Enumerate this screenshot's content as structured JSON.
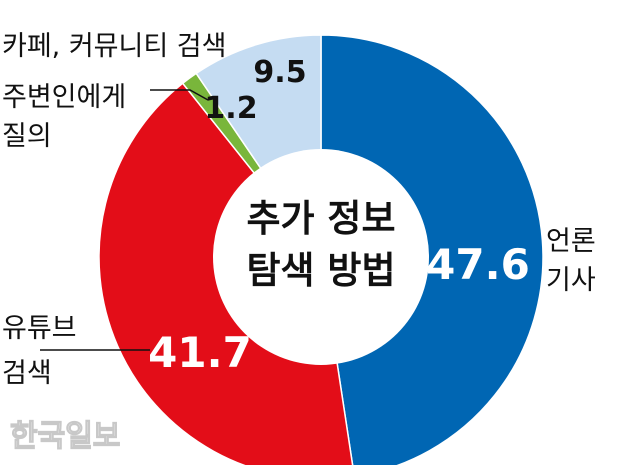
{
  "chart_data": {
    "type": "pie",
    "style": "donut",
    "title_lines": [
      "추가 정보",
      "탐색 방법"
    ],
    "slices": [
      {
        "label_lines": [
          "언론",
          "기사"
        ],
        "value": 47.6,
        "value_label": "47.6",
        "color": "#0066b3"
      },
      {
        "label_lines": [
          "유튜브",
          "검색"
        ],
        "value": 41.7,
        "value_label": "41.7",
        "color": "#e30d18"
      },
      {
        "label_lines": [
          "주변인에게",
          "질의"
        ],
        "value": 1.2,
        "value_label": "1.2",
        "color": "#79b63b"
      },
      {
        "label_lines": [
          "카페, 커뮤니티 검색"
        ],
        "value": 9.5,
        "value_label": "9.5",
        "color": "#c5dcf2"
      }
    ]
  },
  "watermark": "한국일보"
}
